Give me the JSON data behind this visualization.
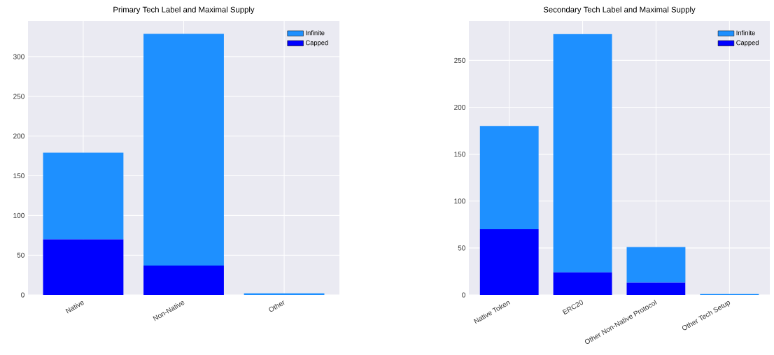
{
  "chart_data": [
    {
      "type": "bar",
      "title": "Primary Tech Label and Maximal Supply",
      "categories": [
        "Native",
        "Non-Native",
        "Other"
      ],
      "stacked": true,
      "series": [
        {
          "name": "Capped",
          "color": "#0000ff",
          "values": [
            70,
            37,
            0
          ]
        },
        {
          "name": "Infinite",
          "color": "#1e90ff",
          "values": [
            109,
            292,
            2
          ]
        }
      ],
      "ylim": [
        0,
        345
      ],
      "yticks": [
        0,
        50,
        100,
        150,
        200,
        250,
        300
      ],
      "grid": true,
      "legend": "top right"
    },
    {
      "type": "bar",
      "title": "Secondary Tech Label and Maximal Supply",
      "categories": [
        "Native Token",
        "ERC20",
        "Other Non-Native Protocol",
        "Other Tech Setup"
      ],
      "stacked": true,
      "series": [
        {
          "name": "Capped",
          "color": "#0000ff",
          "values": [
            70,
            24,
            13,
            0
          ]
        },
        {
          "name": "Infinite",
          "color": "#1e90ff",
          "values": [
            110,
            254,
            38,
            1
          ]
        }
      ],
      "ylim": [
        0,
        292
      ],
      "yticks": [
        0,
        50,
        100,
        150,
        200,
        250
      ],
      "grid": true,
      "legend": "top right"
    }
  ]
}
